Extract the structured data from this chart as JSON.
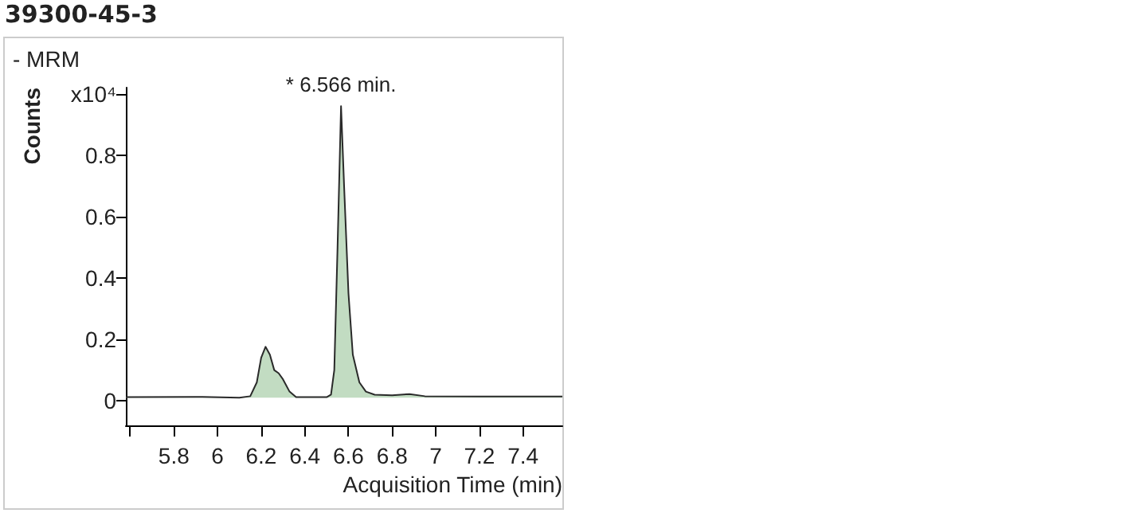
{
  "chart_data": {
    "type": "area",
    "title": "39300-45-3",
    "subtitle": "- MRM",
    "xlabel": "Acquisition Time (min)",
    "ylabel": "Counts",
    "annotations": [
      {
        "text": "* 6.566 min.",
        "x": 6.566,
        "y": 0.96
      }
    ],
    "x": [
      5.58,
      5.9,
      6.1,
      6.15,
      6.18,
      6.2,
      6.22,
      6.24,
      6.26,
      6.28,
      6.3,
      6.33,
      6.36,
      6.5,
      6.52,
      6.535,
      6.55,
      6.566,
      6.58,
      6.6,
      6.62,
      6.65,
      6.68,
      6.72,
      6.8,
      6.88,
      6.95,
      7.2,
      7.58
    ],
    "series": [
      {
        "color": "#c2dcc2",
        "values": [
          0.012,
          0.013,
          0.01,
          0.015,
          0.06,
          0.14,
          0.176,
          0.15,
          0.1,
          0.09,
          0.07,
          0.03,
          0.012,
          0.012,
          0.02,
          0.1,
          0.5,
          0.96,
          0.7,
          0.35,
          0.15,
          0.06,
          0.03,
          0.02,
          0.018,
          0.022,
          0.015,
          0.014,
          0.014
        ]
      }
    ],
    "xlim": [
      5.58,
      7.58
    ],
    "xticks": [
      {
        "value": 5.6,
        "label": null
      },
      5.8,
      6,
      6.2,
      6.4,
      6.6,
      6.8,
      7,
      7.2,
      7.4
    ],
    "ylim": [
      -0.08,
      1.02
    ],
    "yticks": [
      0,
      0.2,
      0.4,
      0.6,
      0.8,
      {
        "value": 1,
        "label": "x10⁴"
      }
    ],
    "grid": false,
    "marker": "none"
  }
}
